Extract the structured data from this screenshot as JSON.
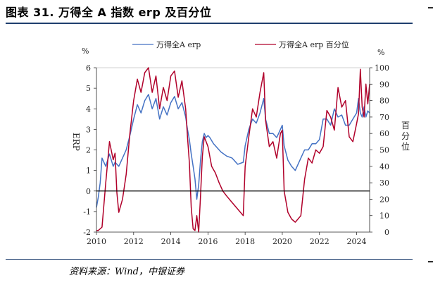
{
  "header": {
    "title": "图表 31. 万得全 A 指数 erp 及百分位"
  },
  "footer": {
    "source": "资料来源：Wind，中银证券"
  },
  "chart_data": {
    "type": "line",
    "left_unit": "%",
    "right_unit": "%",
    "ylabel": "ERP",
    "y2label": [
      "百",
      "分",
      "位"
    ],
    "xlim": [
      2010,
      2024.7
    ],
    "ylim": [
      -2,
      6
    ],
    "y2lim": [
      0,
      100
    ],
    "x_ticks": [
      2010,
      2012,
      2014,
      2016,
      2018,
      2020,
      2022,
      2024
    ],
    "y_ticks": [
      -2,
      -1,
      0,
      1,
      2,
      3,
      4,
      5,
      6
    ],
    "y2_ticks": [
      0,
      10,
      20,
      30,
      40,
      50,
      60,
      70,
      80,
      90,
      100
    ],
    "zero_line": 0,
    "legend_placement": "top",
    "series": [
      {
        "name": "万得全A erp",
        "axis": "left",
        "color": "#4472c4",
        "x": [
          2010.0,
          2010.1,
          2010.2,
          2010.3,
          2010.5,
          2010.7,
          2010.9,
          2011.0,
          2011.2,
          2011.4,
          2011.6,
          2011.8,
          2012.0,
          2012.2,
          2012.4,
          2012.6,
          2012.8,
          2013.0,
          2013.2,
          2013.4,
          2013.6,
          2013.8,
          2014.0,
          2014.2,
          2014.4,
          2014.6,
          2014.8,
          2014.9,
          2015.0,
          2015.1,
          2015.2,
          2015.3,
          2015.4,
          2015.5,
          2015.6,
          2015.7,
          2015.8,
          2015.9,
          2016.0,
          2016.1,
          2016.3,
          2016.5,
          2016.7,
          2017.0,
          2017.3,
          2017.6,
          2017.9,
          2018.0,
          2018.2,
          2018.4,
          2018.6,
          2018.8,
          2019.0,
          2019.1,
          2019.3,
          2019.5,
          2019.7,
          2019.9,
          2020.0,
          2020.1,
          2020.3,
          2020.5,
          2020.7,
          2021.0,
          2021.2,
          2021.4,
          2021.6,
          2021.8,
          2022.0,
          2022.2,
          2022.4,
          2022.6,
          2022.8,
          2023.0,
          2023.2,
          2023.4,
          2023.6,
          2023.8,
          2024.0,
          2024.1,
          2024.2,
          2024.3,
          2024.4,
          2024.5,
          2024.6,
          2024.7
        ],
        "values": [
          -0.8,
          -0.3,
          0.4,
          1.6,
          1.2,
          1.8,
          1.2,
          1.4,
          1.2,
          1.6,
          2.0,
          2.7,
          3.5,
          4.2,
          3.8,
          4.4,
          4.7,
          4.0,
          4.5,
          3.5,
          4.1,
          3.7,
          4.3,
          4.6,
          4.0,
          4.3,
          3.6,
          3.0,
          2.5,
          1.8,
          1.2,
          0.6,
          -0.4,
          0.3,
          1.5,
          2.4,
          2.8,
          2.6,
          2.7,
          2.6,
          2.3,
          2.1,
          1.9,
          1.7,
          1.6,
          1.3,
          1.4,
          2.2,
          3.0,
          3.5,
          3.3,
          3.8,
          4.5,
          3.5,
          2.8,
          2.8,
          2.6,
          3.0,
          3.2,
          2.2,
          1.5,
          1.2,
          1.0,
          1.6,
          2.0,
          2.0,
          2.3,
          2.3,
          2.5,
          3.5,
          3.5,
          3.2,
          4.0,
          3.6,
          3.7,
          3.2,
          3.2,
          3.5,
          3.8,
          4.5,
          3.8,
          3.6,
          4.1,
          3.6,
          3.9,
          3.8
        ]
      },
      {
        "name": "万得全A erp 百分位",
        "axis": "right",
        "color": "#b0002a",
        "x": [
          2010.0,
          2010.1,
          2010.3,
          2010.5,
          2010.7,
          2010.9,
          2011.0,
          2011.1,
          2011.2,
          2011.4,
          2011.6,
          2011.8,
          2012.0,
          2012.2,
          2012.4,
          2012.6,
          2012.8,
          2013.0,
          2013.2,
          2013.4,
          2013.6,
          2013.8,
          2014.0,
          2014.2,
          2014.4,
          2014.6,
          2014.8,
          2014.9,
          2015.0,
          2015.1,
          2015.2,
          2015.3,
          2015.4,
          2015.5,
          2015.6,
          2015.7,
          2015.8,
          2016.0,
          2016.2,
          2016.4,
          2016.6,
          2016.8,
          2017.0,
          2017.3,
          2017.6,
          2017.9,
          2018.0,
          2018.2,
          2018.4,
          2018.6,
          2018.8,
          2019.0,
          2019.1,
          2019.3,
          2019.5,
          2019.7,
          2019.9,
          2020.0,
          2020.1,
          2020.3,
          2020.5,
          2020.7,
          2021.0,
          2021.2,
          2021.4,
          2021.6,
          2021.8,
          2022.0,
          2022.2,
          2022.4,
          2022.6,
          2022.8,
          2023.0,
          2023.2,
          2023.4,
          2023.6,
          2023.8,
          2024.0,
          2024.1,
          2024.2,
          2024.3,
          2024.4,
          2024.5,
          2024.6,
          2024.7
        ],
        "values": [
          1,
          1,
          3,
          30,
          55,
          44,
          48,
          24,
          12,
          20,
          35,
          60,
          80,
          93,
          85,
          97,
          100,
          85,
          95,
          75,
          88,
          80,
          95,
          98,
          82,
          92,
          75,
          58,
          42,
          15,
          2,
          1,
          10,
          0,
          22,
          46,
          58,
          52,
          40,
          36,
          30,
          25,
          22,
          18,
          14,
          10,
          40,
          58,
          75,
          70,
          85,
          97,
          68,
          52,
          55,
          45,
          60,
          62,
          25,
          12,
          8,
          6,
          10,
          32,
          45,
          42,
          50,
          48,
          52,
          74,
          70,
          62,
          88,
          76,
          80,
          58,
          55,
          66,
          72,
          99,
          76,
          70,
          90,
          78,
          90
        ]
      }
    ]
  }
}
